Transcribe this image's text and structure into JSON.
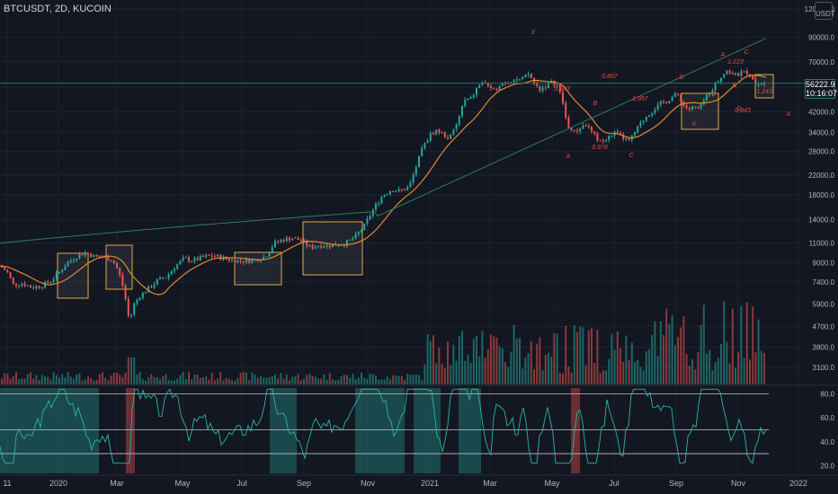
{
  "header": {
    "symbol": "BTCUSDT, 2D, KUCOIN"
  },
  "currency": "USDT",
  "last_price": {
    "value": "56222.9",
    "countdown": "10:16:07"
  },
  "colors": {
    "bg": "#131722",
    "up": "#26a69a",
    "down": "#ef5350",
    "ma_orange": "#e08a2e",
    "ma_green": "#2e7d60",
    "box": "#e0a848",
    "pattern": "#e84d3d",
    "rsi": "#2bb5a0"
  },
  "chart_data": [
    {
      "type": "candlestick",
      "title": "BTCUSDT, 2D, KUCOIN",
      "y_scale": "log",
      "ylim": [
        2600,
        120000
      ],
      "y_ticks": [
        "3100.0",
        "3800.0",
        "4700.0",
        "5900.0",
        "7400.0",
        "9000.0",
        "11000.0",
        "14000.0",
        "18000.0",
        "22000.0",
        "28000.0",
        "34000.0",
        "42000.0",
        "54000.0",
        "70000.0",
        "90000.0",
        "120000.0"
      ],
      "x_ticks": [
        "11",
        "2020",
        "Mar",
        "May",
        "Jul",
        "Sep",
        "Nov",
        "2021",
        "Mar",
        "May",
        "Jul",
        "Sep",
        "Nov",
        "2022"
      ],
      "close_path": [
        [
          0,
          8700
        ],
        [
          8,
          8200
        ],
        [
          15,
          7200
        ],
        [
          25,
          7300
        ],
        [
          35,
          7000
        ],
        [
          45,
          7100
        ],
        [
          55,
          7400
        ],
        [
          65,
          8100
        ],
        [
          75,
          9000
        ],
        [
          85,
          9600
        ],
        [
          95,
          10000
        ],
        [
          105,
          9600
        ],
        [
          115,
          9500
        ],
        [
          125,
          9300
        ],
        [
          132,
          8200
        ],
        [
          138,
          6800
        ],
        [
          144,
          4900
        ],
        [
          148,
          5800
        ],
        [
          155,
          6400
        ],
        [
          165,
          6900
        ],
        [
          175,
          7500
        ],
        [
          185,
          7800
        ],
        [
          195,
          8700
        ],
        [
          205,
          9400
        ],
        [
          215,
          9200
        ],
        [
          225,
          9500
        ],
        [
          235,
          9700
        ],
        [
          245,
          9500
        ],
        [
          255,
          9300
        ],
        [
          265,
          9200
        ],
        [
          275,
          9200
        ],
        [
          285,
          9300
        ],
        [
          295,
          9600
        ],
        [
          305,
          11000
        ],
        [
          315,
          11400
        ],
        [
          325,
          11600
        ],
        [
          335,
          11300
        ],
        [
          345,
          10500
        ],
        [
          355,
          10800
        ],
        [
          365,
          10700
        ],
        [
          375,
          10900
        ],
        [
          385,
          11000
        ],
        [
          395,
          11700
        ],
        [
          405,
          13100
        ],
        [
          415,
          15500
        ],
        [
          425,
          17800
        ],
        [
          435,
          19000
        ],
        [
          445,
          18700
        ],
        [
          455,
          19500
        ],
        [
          462,
          23500
        ],
        [
          470,
          29000
        ],
        [
          478,
          33000
        ],
        [
          486,
          35000
        ],
        [
          494,
          33000
        ],
        [
          500,
          32000
        ],
        [
          508,
          37000
        ],
        [
          516,
          47000
        ],
        [
          524,
          48000
        ],
        [
          532,
          55000
        ],
        [
          540,
          57000
        ],
        [
          548,
          51000
        ],
        [
          556,
          56000
        ],
        [
          564,
          57000
        ],
        [
          572,
          59000
        ],
        [
          580,
          58000
        ],
        [
          588,
          62000
        ],
        [
          594,
          56000
        ],
        [
          600,
          53000
        ],
        [
          608,
          55000
        ],
        [
          615,
          57000
        ],
        [
          620,
          55000
        ],
        [
          626,
          46000
        ],
        [
          630,
          38000
        ],
        [
          634,
          35000
        ],
        [
          640,
          34000
        ],
        [
          646,
          36000
        ],
        [
          652,
          37000
        ],
        [
          658,
          34000
        ],
        [
          664,
          32000
        ],
        [
          670,
          31000
        ],
        [
          676,
          32000
        ],
        [
          682,
          34000
        ],
        [
          688,
          33000
        ],
        [
          694,
          32000
        ],
        [
          700,
          31000
        ],
        [
          706,
          34000
        ],
        [
          712,
          37000
        ],
        [
          718,
          40000
        ],
        [
          724,
          42000
        ],
        [
          730,
          44000
        ],
        [
          736,
          46000
        ],
        [
          742,
          47000
        ],
        [
          748,
          49000
        ],
        [
          754,
          50000
        ],
        [
          760,
          45000
        ],
        [
          766,
          43000
        ],
        [
          772,
          44000
        ],
        [
          778,
          43000
        ],
        [
          784,
          48000
        ],
        [
          790,
          52000
        ],
        [
          796,
          56000
        ],
        [
          802,
          60000
        ],
        [
          806,
          64000
        ],
        [
          812,
          63000
        ],
        [
          818,
          61000
        ],
        [
          824,
          62000
        ],
        [
          830,
          64000
        ],
        [
          836,
          58000
        ],
        [
          842,
          56000
        ],
        [
          848,
          57000
        ],
        [
          852,
          56222
        ]
      ],
      "volume_scale": [
        0,
        1
      ],
      "rsi_levels": {
        "upper": 80.0,
        "mid": 50.0,
        "lower": 30.0,
        "ticks": [
          "80.0",
          "60.0",
          "40.0",
          "20.0"
        ]
      },
      "annotations": [
        "X",
        "A",
        "B",
        "C",
        "D",
        "0.867",
        "0.978",
        "1.957",
        "1.223",
        "0.843",
        "1.243",
        "X",
        "A",
        "B",
        "C",
        "D",
        "0.843",
        "A",
        "D"
      ]
    }
  ]
}
